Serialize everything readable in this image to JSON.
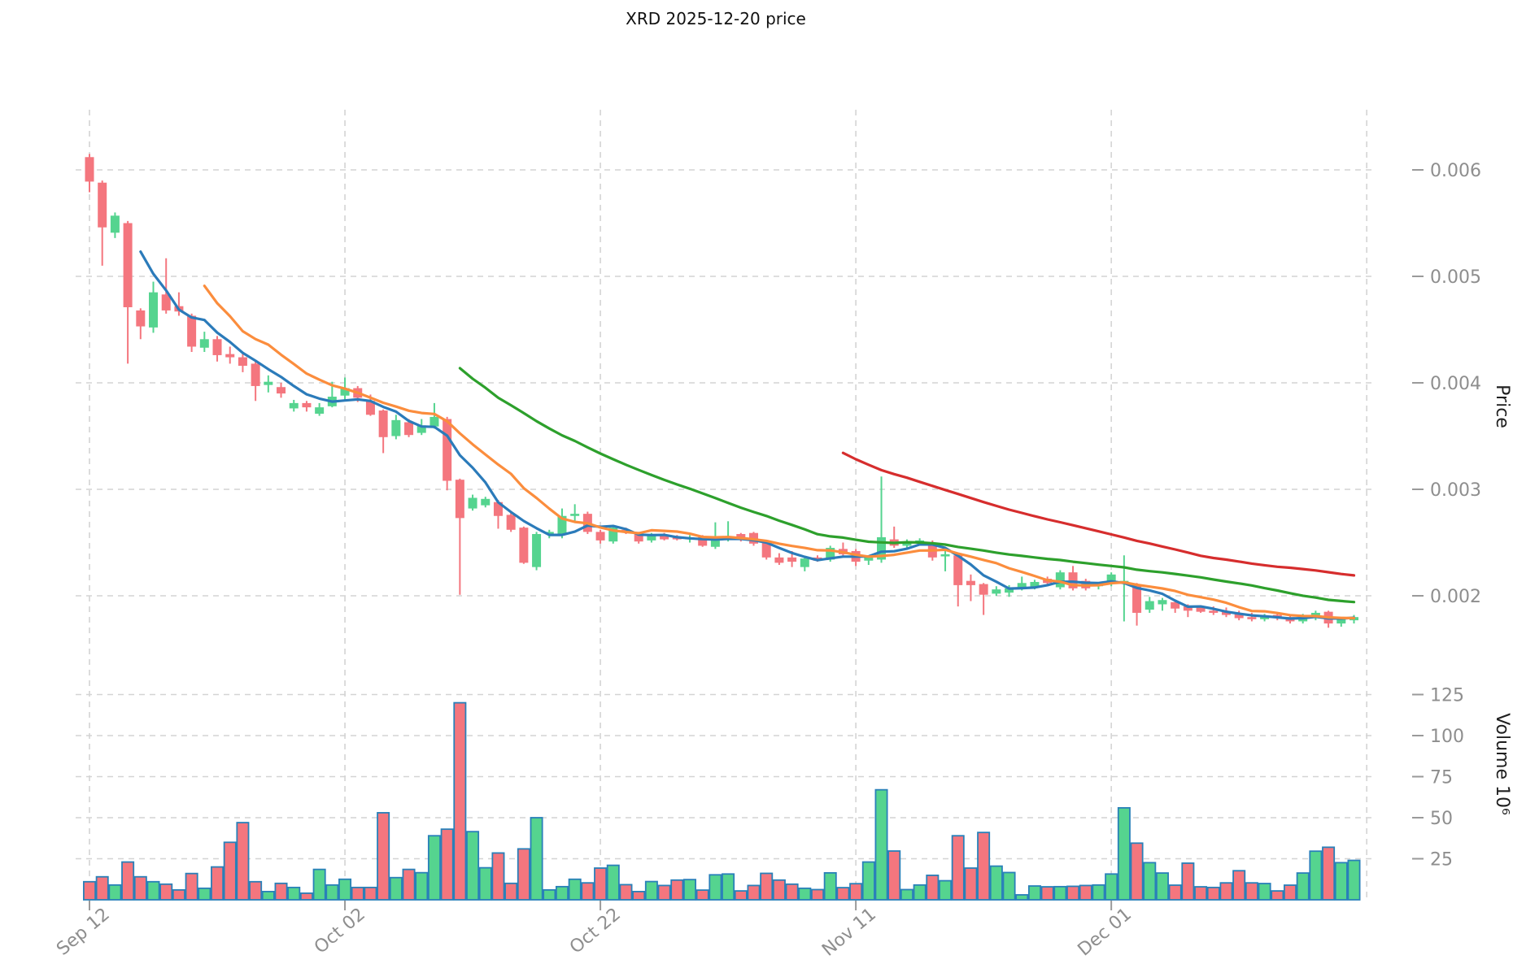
{
  "chart_data": {
    "type": "candlestick",
    "title": "XRD  2025-12-20  price",
    "symbol": "XRD",
    "as_of_date": "2025-12-20",
    "legend_position": "none",
    "grid": "dashed",
    "x_axis": {
      "tick_labels": [
        "Sep 12",
        "Oct 02",
        "Oct 22",
        "Nov 11",
        "Dec 01"
      ],
      "tick_candle_indices": [
        0,
        20,
        40,
        60,
        80
      ],
      "extra_gridline_index": 100
    },
    "price_axis": {
      "label": "Price",
      "side": "right",
      "tick_labels": [
        "0.006",
        "0.005",
        "0.004",
        "0.003",
        "0.002"
      ],
      "tick_values": [
        0.006,
        0.005,
        0.004,
        0.003,
        0.002
      ]
    },
    "volume_axis": {
      "label": "Volume  10⁶",
      "side": "right",
      "tick_labels": [
        "125",
        "100",
        "75",
        "50",
        "25"
      ],
      "tick_values": [
        125,
        100,
        75,
        50,
        25
      ],
      "unit_multiplier": 1000000
    },
    "moving_averages": [
      {
        "name": "sma-5",
        "period": 5,
        "color": "#2b7bba"
      },
      {
        "name": "sma-10",
        "period": 10,
        "color": "#fb8d3d"
      },
      {
        "name": "sma-30",
        "period": 30,
        "color": "#2da02c"
      },
      {
        "name": "sma-60",
        "period": 60,
        "color": "#d62d2d"
      }
    ],
    "candles": {
      "columns": [
        "open",
        "high",
        "low",
        "close"
      ],
      "rows": [
        [
          0.00612,
          0.00615,
          0.00579,
          0.00589
        ],
        [
          0.00588,
          0.0059,
          0.0051,
          0.00546
        ],
        [
          0.00541,
          0.0056,
          0.00536,
          0.00557
        ],
        [
          0.0055,
          0.00552,
          0.00418,
          0.00471
        ],
        [
          0.00468,
          0.0047,
          0.00441,
          0.00453
        ],
        [
          0.00452,
          0.00495,
          0.00447,
          0.00485
        ],
        [
          0.00483,
          0.00517,
          0.00465,
          0.00468
        ],
        [
          0.00472,
          0.00485,
          0.00463,
          0.00467
        ],
        [
          0.00463,
          0.00465,
          0.00429,
          0.00434
        ],
        [
          0.00433,
          0.00448,
          0.00429,
          0.00441
        ],
        [
          0.00441,
          0.00444,
          0.0042,
          0.00426
        ],
        [
          0.00427,
          0.00434,
          0.00418,
          0.00424
        ],
        [
          0.00424,
          0.00427,
          0.0041,
          0.00416
        ],
        [
          0.00418,
          0.0042,
          0.00383,
          0.00397
        ],
        [
          0.00398,
          0.00407,
          0.00391,
          0.00401
        ],
        [
          0.00396,
          0.004,
          0.00386,
          0.0039
        ],
        [
          0.00376,
          0.00384,
          0.00373,
          0.00381
        ],
        [
          0.00381,
          0.00383,
          0.00373,
          0.00377
        ],
        [
          0.00371,
          0.00381,
          0.00369,
          0.00377
        ],
        [
          0.00378,
          0.00401,
          0.00377,
          0.00387
        ],
        [
          0.00388,
          0.00405,
          0.00383,
          0.00395
        ],
        [
          0.00395,
          0.00397,
          0.00382,
          0.00386
        ],
        [
          0.00383,
          0.00389,
          0.00369,
          0.0037
        ],
        [
          0.00374,
          0.00375,
          0.00334,
          0.00349
        ],
        [
          0.0035,
          0.0037,
          0.00347,
          0.00365
        ],
        [
          0.00363,
          0.00366,
          0.00349,
          0.00351
        ],
        [
          0.00353,
          0.00366,
          0.00351,
          0.0036
        ],
        [
          0.00359,
          0.00381,
          0.00357,
          0.00368
        ],
        [
          0.00366,
          0.00368,
          0.00299,
          0.00308
        ],
        [
          0.00309,
          0.0031,
          0.00201,
          0.00273
        ],
        [
          0.00282,
          0.00295,
          0.0028,
          0.00292
        ],
        [
          0.00285,
          0.00293,
          0.00283,
          0.00291
        ],
        [
          0.00288,
          0.0029,
          0.00263,
          0.00275
        ],
        [
          0.00276,
          0.00278,
          0.0026,
          0.00262
        ],
        [
          0.00264,
          0.00265,
          0.0023,
          0.00231
        ],
        [
          0.00227,
          0.0026,
          0.00224,
          0.00258
        ],
        [
          0.00258,
          0.00262,
          0.00254,
          0.0026
        ],
        [
          0.00258,
          0.00282,
          0.00254,
          0.00275
        ],
        [
          0.00275,
          0.00286,
          0.00269,
          0.00277
        ],
        [
          0.00277,
          0.00279,
          0.00258,
          0.0026
        ],
        [
          0.0026,
          0.00262,
          0.00249,
          0.00252
        ],
        [
          0.00251,
          0.00266,
          0.00249,
          0.00264
        ],
        [
          0.00262,
          0.00264,
          0.00258,
          0.0026
        ],
        [
          0.00258,
          0.0026,
          0.00249,
          0.00251
        ],
        [
          0.00252,
          0.00259,
          0.0025,
          0.00258
        ],
        [
          0.00257,
          0.00259,
          0.00252,
          0.00253
        ],
        [
          0.00255,
          0.00257,
          0.00252,
          0.00253
        ],
        [
          0.00253,
          0.00257,
          0.0025,
          0.00255
        ],
        [
          0.00255,
          0.00257,
          0.00246,
          0.00247
        ],
        [
          0.00246,
          0.00269,
          0.00244,
          0.00256
        ],
        [
          0.00253,
          0.0027,
          0.00251,
          0.00256
        ],
        [
          0.00258,
          0.00259,
          0.00251,
          0.00253
        ],
        [
          0.00259,
          0.0026,
          0.00247,
          0.00249
        ],
        [
          0.0025,
          0.00251,
          0.00234,
          0.00236
        ],
        [
          0.00236,
          0.0024,
          0.00229,
          0.00231
        ],
        [
          0.00236,
          0.00242,
          0.00227,
          0.00232
        ],
        [
          0.00227,
          0.00236,
          0.00223,
          0.00235
        ],
        [
          0.00236,
          0.00238,
          0.00232,
          0.00233
        ],
        [
          0.00234,
          0.00247,
          0.00232,
          0.00245
        ],
        [
          0.00244,
          0.0025,
          0.00237,
          0.00239
        ],
        [
          0.00242,
          0.00244,
          0.00228,
          0.00232
        ],
        [
          0.00233,
          0.00238,
          0.00229,
          0.00236
        ],
        [
          0.00234,
          0.00312,
          0.00231,
          0.00255
        ],
        [
          0.00253,
          0.00265,
          0.00245,
          0.00247
        ],
        [
          0.00247,
          0.00253,
          0.00245,
          0.00251
        ],
        [
          0.0025,
          0.00254,
          0.00247,
          0.00252
        ],
        [
          0.0025,
          0.00252,
          0.00233,
          0.00236
        ],
        [
          0.00237,
          0.00243,
          0.00223,
          0.00239
        ],
        [
          0.00238,
          0.00239,
          0.0019,
          0.0021
        ],
        [
          0.00214,
          0.0022,
          0.00195,
          0.0021
        ],
        [
          0.00211,
          0.00212,
          0.00182,
          0.00201
        ],
        [
          0.00202,
          0.00209,
          0.002,
          0.00206
        ],
        [
          0.00203,
          0.0021,
          0.00199,
          0.00207
        ],
        [
          0.00207,
          0.00218,
          0.00205,
          0.00212
        ],
        [
          0.00208,
          0.00215,
          0.00206,
          0.00213
        ],
        [
          0.00216,
          0.00218,
          0.0021,
          0.00212
        ],
        [
          0.00208,
          0.00224,
          0.00206,
          0.00222
        ],
        [
          0.00222,
          0.00228,
          0.00205,
          0.00207
        ],
        [
          0.00214,
          0.00216,
          0.00205,
          0.00207
        ],
        [
          0.00209,
          0.00213,
          0.00206,
          0.00212
        ],
        [
          0.00212,
          0.00222,
          0.00209,
          0.0022
        ],
        [
          0.00212,
          0.00238,
          0.00176,
          0.00214
        ],
        [
          0.0021,
          0.00212,
          0.00172,
          0.00184
        ],
        [
          0.00187,
          0.00199,
          0.00184,
          0.00195
        ],
        [
          0.00192,
          0.00198,
          0.00186,
          0.00196
        ],
        [
          0.00194,
          0.00196,
          0.00184,
          0.00188
        ],
        [
          0.0019,
          0.00192,
          0.0018,
          0.00186
        ],
        [
          0.00189,
          0.00191,
          0.00184,
          0.00185
        ],
        [
          0.00186,
          0.0019,
          0.00182,
          0.00184
        ],
        [
          0.00185,
          0.00189,
          0.0018,
          0.00182
        ],
        [
          0.00183,
          0.00186,
          0.00177,
          0.00179
        ],
        [
          0.0018,
          0.00184,
          0.00176,
          0.00178
        ],
        [
          0.00178,
          0.00183,
          0.00176,
          0.00181
        ],
        [
          0.00182,
          0.00184,
          0.00177,
          0.00179
        ],
        [
          0.0018,
          0.00182,
          0.00174,
          0.00176
        ],
        [
          0.00176,
          0.00183,
          0.00174,
          0.00181
        ],
        [
          0.0018,
          0.00186,
          0.00177,
          0.00184
        ],
        [
          0.00185,
          0.00186,
          0.0017,
          0.00174
        ],
        [
          0.00174,
          0.0018,
          0.00171,
          0.00178
        ],
        [
          0.00177,
          0.00182,
          0.00174,
          0.0018
        ]
      ]
    },
    "volumes_millions": [
      11,
      14,
      9,
      23,
      14,
      11,
      9.5,
      6,
      16,
      7,
      20,
      35,
      47,
      11,
      5,
      10,
      7.5,
      4,
      18.5,
      9,
      12.5,
      7.5,
      7.5,
      53,
      13.5,
      18.5,
      16.5,
      39,
      43,
      120,
      41.5,
      19.5,
      28.5,
      10,
      31,
      50,
      6,
      8,
      12.5,
      10.3,
      19.3,
      21,
      9.2,
      5,
      11.1,
      8.7,
      12,
      12.3,
      5.9,
      15.2,
      15.7,
      5.4,
      8.7,
      16.1,
      12,
      9.5,
      7,
      6.2,
      16.4,
      7.4,
      9.8,
      23,
      67,
      29.7,
      6.2,
      9,
      14.9,
      11.6,
      39,
      19.3,
      41,
      20.5,
      16.6,
      3,
      8.4,
      7.9,
      8,
      8.2,
      8.7,
      9,
      15.7,
      56,
      34.5,
      22.6,
      16.3,
      8.9,
      22.3,
      7.9,
      7.5,
      10.3,
      17.7,
      10.3,
      9.9,
      5.4,
      8.9,
      16.3,
      29.6,
      32,
      22.6,
      24
    ],
    "colors": {
      "up": "#55d48f",
      "down": "#f4767e",
      "volume_outline": "#2980b9",
      "grid": "#d4d4d4",
      "tick_mark": "#9a9a9a",
      "tick_text": "#8e8e8e",
      "axis_title_text": "#1f1f1f",
      "title_text": "#111111",
      "background": "#ffffff"
    }
  }
}
